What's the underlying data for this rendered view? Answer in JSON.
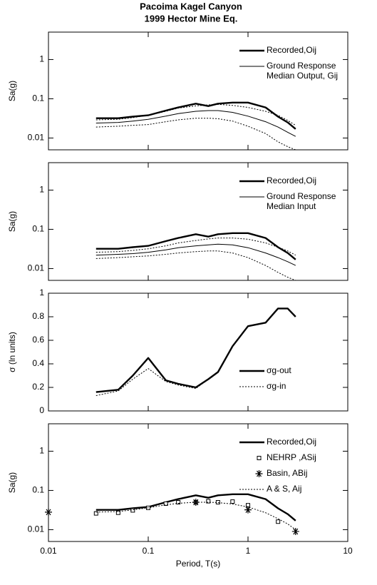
{
  "title": [
    "Pacoima Kagel Canyon",
    "1999 Hector Mine Eq."
  ],
  "chart_data": [
    {
      "type": "line",
      "ylabel": "Sa(g)",
      "xscale": "log",
      "yscale": "log",
      "xlim": [
        0.01,
        10
      ],
      "xticks": [
        0.01,
        0.1,
        1,
        10
      ],
      "show_xticklabels": false,
      "ylim": [
        0.005,
        5
      ],
      "yticks": [
        0.01,
        0.1,
        1
      ],
      "legend": "upper right",
      "x": [
        0.03,
        0.05,
        0.07,
        0.1,
        0.15,
        0.2,
        0.3,
        0.4,
        0.5,
        0.7,
        1,
        1.5,
        2,
        2.5,
        3
      ],
      "series": [
        {
          "name": [
            "Recorded,Oij"
          ],
          "color": "#000000",
          "style": "solid",
          "width": 2.4,
          "values": [
            0.032,
            0.032,
            0.035,
            0.038,
            0.05,
            0.06,
            0.075,
            0.065,
            0.075,
            0.08,
            0.08,
            0.06,
            0.035,
            0.025,
            0.017
          ]
        },
        {
          "name": [
            "Ground Response",
            "Median Output, Gij"
          ],
          "color": "#000000",
          "style": "solid",
          "width": 1,
          "values": [
            0.024,
            0.025,
            0.027,
            0.03,
            0.036,
            0.042,
            0.048,
            0.05,
            0.05,
            0.045,
            0.036,
            0.026,
            0.019,
            0.014,
            0.011
          ]
        },
        {
          "color": "#000000",
          "style": "dotted",
          "width": 1,
          "values": [
            0.029,
            0.03,
            0.033,
            0.038,
            0.048,
            0.058,
            0.066,
            0.07,
            0.072,
            0.068,
            0.06,
            0.048,
            0.038,
            0.028,
            0.021
          ]
        },
        {
          "color": "#000000",
          "style": "dotted",
          "width": 1,
          "values": [
            0.019,
            0.02,
            0.021,
            0.022,
            0.026,
            0.029,
            0.032,
            0.032,
            0.031,
            0.027,
            0.02,
            0.013,
            0.008,
            0.006,
            0.005
          ]
        }
      ]
    },
    {
      "type": "line",
      "ylabel": "Sa(g)",
      "xscale": "log",
      "yscale": "log",
      "xlim": [
        0.01,
        10
      ],
      "xticks": [
        0.01,
        0.1,
        1,
        10
      ],
      "show_xticklabels": false,
      "ylim": [
        0.005,
        5
      ],
      "yticks": [
        0.01,
        0.1,
        1
      ],
      "legend": "upper right",
      "x": [
        0.03,
        0.05,
        0.07,
        0.1,
        0.15,
        0.2,
        0.3,
        0.4,
        0.5,
        0.7,
        1,
        1.5,
        2,
        2.5,
        3
      ],
      "series": [
        {
          "name": [
            "Recorded,Oij"
          ],
          "color": "#000000",
          "style": "solid",
          "width": 2.4,
          "values": [
            0.032,
            0.032,
            0.035,
            0.038,
            0.05,
            0.06,
            0.075,
            0.065,
            0.075,
            0.08,
            0.08,
            0.06,
            0.035,
            0.025,
            0.017
          ]
        },
        {
          "name": [
            "Ground Response",
            "Median Input"
          ],
          "color": "#000000",
          "style": "solid",
          "width": 1,
          "values": [
            0.022,
            0.023,
            0.024,
            0.026,
            0.03,
            0.034,
            0.038,
            0.04,
            0.042,
            0.04,
            0.034,
            0.025,
            0.019,
            0.015,
            0.012
          ]
        },
        {
          "color": "#000000",
          "style": "dotted",
          "width": 1,
          "values": [
            0.026,
            0.027,
            0.029,
            0.032,
            0.038,
            0.045,
            0.052,
            0.057,
            0.06,
            0.06,
            0.056,
            0.045,
            0.035,
            0.028,
            0.022
          ]
        },
        {
          "color": "#000000",
          "style": "dotted",
          "width": 1,
          "values": [
            0.018,
            0.019,
            0.02,
            0.021,
            0.023,
            0.025,
            0.027,
            0.028,
            0.028,
            0.025,
            0.019,
            0.012,
            0.008,
            0.006,
            0.005
          ]
        }
      ]
    },
    {
      "type": "line",
      "ylabel": "σ (ln units)",
      "xscale": "log",
      "yscale": "linear",
      "xlim": [
        0.01,
        10
      ],
      "xticks": [
        0.01,
        0.1,
        1,
        10
      ],
      "show_xticklabels": false,
      "ylim": [
        0,
        1
      ],
      "yticks": [
        0,
        0.2,
        0.4,
        0.6,
        0.8,
        1
      ],
      "legend": "lower right",
      "x": [
        0.03,
        0.05,
        0.07,
        0.1,
        0.15,
        0.2,
        0.3,
        0.4,
        0.5,
        0.7,
        1,
        1.5,
        2,
        2.5,
        3
      ],
      "series": [
        {
          "name": [
            "σg-out"
          ],
          "color": "#000000",
          "style": "solid",
          "width": 2.4,
          "values": [
            0.16,
            0.18,
            0.3,
            0.45,
            0.26,
            0.23,
            0.2,
            0.27,
            0.33,
            0.55,
            0.72,
            0.75,
            0.87,
            0.87,
            0.8
          ]
        },
        {
          "name": [
            "σg-in"
          ],
          "color": "#000000",
          "style": "dotted",
          "width": 1,
          "values": [
            0.13,
            0.17,
            0.27,
            0.36,
            0.25,
            0.22,
            0.19,
            0.27,
            0.33,
            0.55,
            0.72,
            0.75,
            0.87,
            0.87,
            0.8
          ]
        }
      ]
    },
    {
      "type": "line",
      "ylabel": "Sa(g)",
      "xlabel": "Period, T(s)",
      "xscale": "log",
      "yscale": "log",
      "xlim": [
        0.01,
        10
      ],
      "xticks": [
        0.01,
        0.1,
        1,
        10
      ],
      "show_xticklabels": true,
      "ylim": [
        0.005,
        5
      ],
      "yticks": [
        0.01,
        0.1,
        1
      ],
      "legend": "upper right",
      "x": [
        0.03,
        0.05,
        0.07,
        0.1,
        0.15,
        0.2,
        0.3,
        0.4,
        0.5,
        0.7,
        1,
        1.5,
        2,
        2.5,
        3
      ],
      "series": [
        {
          "name": [
            "Recorded,Oij"
          ],
          "color": "#000000",
          "style": "solid",
          "width": 2.4,
          "values": [
            0.032,
            0.032,
            0.035,
            0.038,
            0.05,
            0.06,
            0.075,
            0.065,
            0.075,
            0.08,
            0.08,
            0.06,
            0.035,
            0.025,
            0.017
          ]
        },
        {
          "name": [
            "NEHRP ,ASij"
          ],
          "color": "#000000",
          "style": "marker",
          "marker": "square",
          "x": [
            0.03,
            0.05,
            0.07,
            0.1,
            0.15,
            0.2,
            0.3,
            0.4,
            0.5,
            0.7,
            1,
            2
          ],
          "values": [
            0.026,
            0.027,
            0.031,
            0.036,
            0.046,
            0.05,
            0.05,
            0.053,
            0.05,
            0.052,
            0.042,
            0.016
          ]
        },
        {
          "name": [
            "Basin, ABij"
          ],
          "color": "#000000",
          "style": "marker",
          "marker": "star",
          "x": [
            0.01,
            0.3,
            1,
            3
          ],
          "values": [
            0.028,
            0.05,
            0.032,
            0.009
          ]
        },
        {
          "name": [
            "A & S, Aij"
          ],
          "color": "#000000",
          "style": "dotted",
          "width": 1,
          "values": [
            0.028,
            0.029,
            0.032,
            0.036,
            0.043,
            0.047,
            0.05,
            0.05,
            0.049,
            0.045,
            0.038,
            0.027,
            0.019,
            0.014,
            0.01
          ]
        }
      ]
    }
  ]
}
